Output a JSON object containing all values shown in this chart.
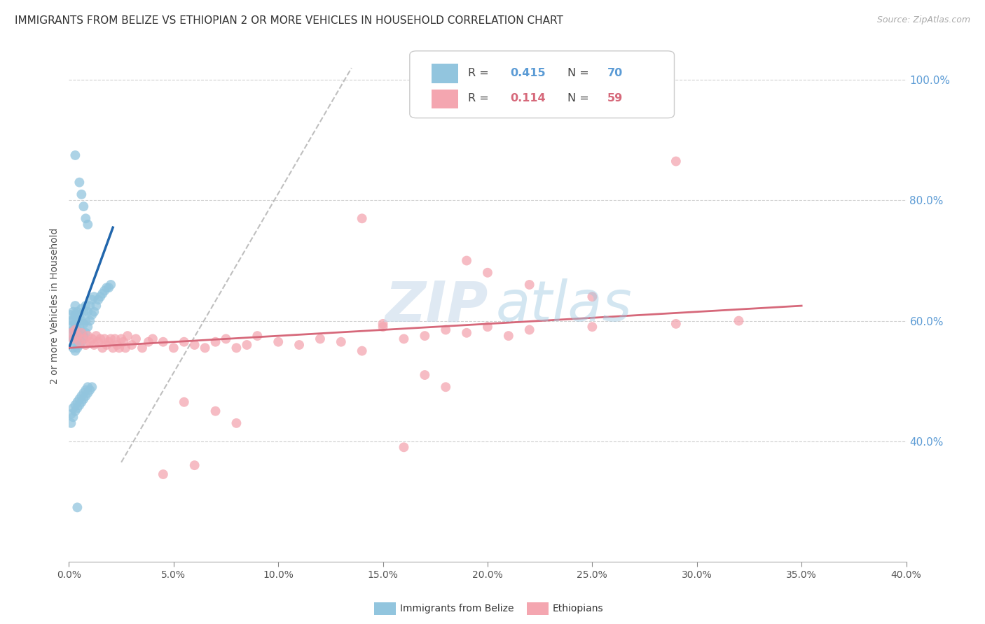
{
  "title": "IMMIGRANTS FROM BELIZE VS ETHIOPIAN 2 OR MORE VEHICLES IN HOUSEHOLD CORRELATION CHART",
  "source": "Source: ZipAtlas.com",
  "ylabel": "2 or more Vehicles in Household",
  "xlim": [
    0.0,
    0.4
  ],
  "ylim": [
    0.2,
    1.05
  ],
  "xticks": [
    0.0,
    0.05,
    0.1,
    0.15,
    0.2,
    0.25,
    0.3,
    0.35,
    0.4
  ],
  "xtick_labels": [
    "0.0%",
    "5.0%",
    "10.0%",
    "15.0%",
    "20.0%",
    "25.0%",
    "30.0%",
    "35.0%",
    "40.0%"
  ],
  "yticks_right": [
    0.4,
    0.6,
    0.8,
    1.0
  ],
  "ytick_labels_right": [
    "40.0%",
    "60.0%",
    "80.0%",
    "100.0%"
  ],
  "belize_color": "#92c5de",
  "ethiopian_color": "#f4a6b0",
  "belize_line_color": "#2166ac",
  "ethiopian_line_color": "#d6687a",
  "belize_R": 0.415,
  "belize_N": 70,
  "ethiopian_R": 0.114,
  "ethiopian_N": 59,
  "legend_label_belize": "Immigrants from Belize",
  "legend_label_ethiopian": "Ethiopians",
  "watermark_zip": "ZIP",
  "watermark_atlas": "atlas",
  "background_color": "#ffffff",
  "grid_color": "#d0d0d0",
  "belize_x": [
    0.001,
    0.001,
    0.001,
    0.001,
    0.002,
    0.002,
    0.002,
    0.002,
    0.002,
    0.003,
    0.003,
    0.003,
    0.003,
    0.003,
    0.003,
    0.004,
    0.004,
    0.004,
    0.004,
    0.004,
    0.005,
    0.005,
    0.005,
    0.005,
    0.006,
    0.006,
    0.006,
    0.006,
    0.007,
    0.007,
    0.007,
    0.008,
    0.008,
    0.008,
    0.009,
    0.009,
    0.01,
    0.01,
    0.011,
    0.011,
    0.012,
    0.012,
    0.013,
    0.014,
    0.015,
    0.016,
    0.017,
    0.018,
    0.019,
    0.02,
    0.001,
    0.001,
    0.002,
    0.002,
    0.003,
    0.003,
    0.004,
    0.004,
    0.005,
    0.005,
    0.006,
    0.006,
    0.007,
    0.007,
    0.008,
    0.008,
    0.009,
    0.009,
    0.01,
    0.011
  ],
  "belize_y": [
    0.575,
    0.59,
    0.6,
    0.61,
    0.555,
    0.57,
    0.585,
    0.6,
    0.615,
    0.55,
    0.565,
    0.58,
    0.595,
    0.61,
    0.625,
    0.555,
    0.57,
    0.585,
    0.6,
    0.615,
    0.56,
    0.575,
    0.59,
    0.61,
    0.565,
    0.58,
    0.6,
    0.62,
    0.575,
    0.595,
    0.615,
    0.58,
    0.6,
    0.625,
    0.59,
    0.615,
    0.6,
    0.625,
    0.61,
    0.635,
    0.615,
    0.64,
    0.625,
    0.635,
    0.64,
    0.645,
    0.65,
    0.655,
    0.655,
    0.66,
    0.43,
    0.445,
    0.44,
    0.455,
    0.45,
    0.46,
    0.455,
    0.465,
    0.46,
    0.47,
    0.465,
    0.475,
    0.47,
    0.48,
    0.475,
    0.485,
    0.48,
    0.49,
    0.485,
    0.49
  ],
  "belize_y_outliers": [
    0.875,
    0.83,
    0.81,
    0.79,
    0.77,
    0.76,
    0.29
  ],
  "belize_x_outliers": [
    0.003,
    0.005,
    0.006,
    0.007,
    0.008,
    0.009,
    0.004
  ],
  "ethiopian_x": [
    0.001,
    0.002,
    0.003,
    0.004,
    0.005,
    0.006,
    0.007,
    0.008,
    0.009,
    0.01,
    0.011,
    0.012,
    0.013,
    0.014,
    0.015,
    0.016,
    0.017,
    0.018,
    0.019,
    0.02,
    0.021,
    0.022,
    0.023,
    0.024,
    0.025,
    0.026,
    0.027,
    0.028,
    0.03,
    0.032,
    0.035,
    0.038,
    0.04,
    0.045,
    0.05,
    0.055,
    0.06,
    0.065,
    0.07,
    0.075,
    0.08,
    0.085,
    0.09,
    0.1,
    0.11,
    0.12,
    0.13,
    0.14,
    0.15,
    0.16,
    0.17,
    0.18,
    0.19,
    0.2,
    0.21,
    0.22,
    0.25,
    0.29,
    0.32
  ],
  "ethiopian_y": [
    0.58,
    0.57,
    0.585,
    0.575,
    0.565,
    0.58,
    0.57,
    0.56,
    0.575,
    0.565,
    0.57,
    0.56,
    0.575,
    0.565,
    0.57,
    0.555,
    0.57,
    0.56,
    0.565,
    0.57,
    0.555,
    0.57,
    0.56,
    0.555,
    0.57,
    0.565,
    0.555,
    0.575,
    0.56,
    0.57,
    0.555,
    0.565,
    0.57,
    0.565,
    0.555,
    0.565,
    0.56,
    0.555,
    0.565,
    0.57,
    0.555,
    0.56,
    0.575,
    0.565,
    0.56,
    0.57,
    0.565,
    0.55,
    0.59,
    0.57,
    0.575,
    0.585,
    0.58,
    0.59,
    0.575,
    0.585,
    0.59,
    0.595,
    0.6
  ],
  "ethiopian_y_special": [
    0.865,
    0.77,
    0.7,
    0.68,
    0.66,
    0.64,
    0.595,
    0.51,
    0.49,
    0.465,
    0.45,
    0.43,
    0.39,
    0.36,
    0.345
  ],
  "ethiopian_x_special": [
    0.29,
    0.14,
    0.19,
    0.2,
    0.22,
    0.25,
    0.15,
    0.17,
    0.18,
    0.055,
    0.07,
    0.08,
    0.16,
    0.06,
    0.045
  ]
}
